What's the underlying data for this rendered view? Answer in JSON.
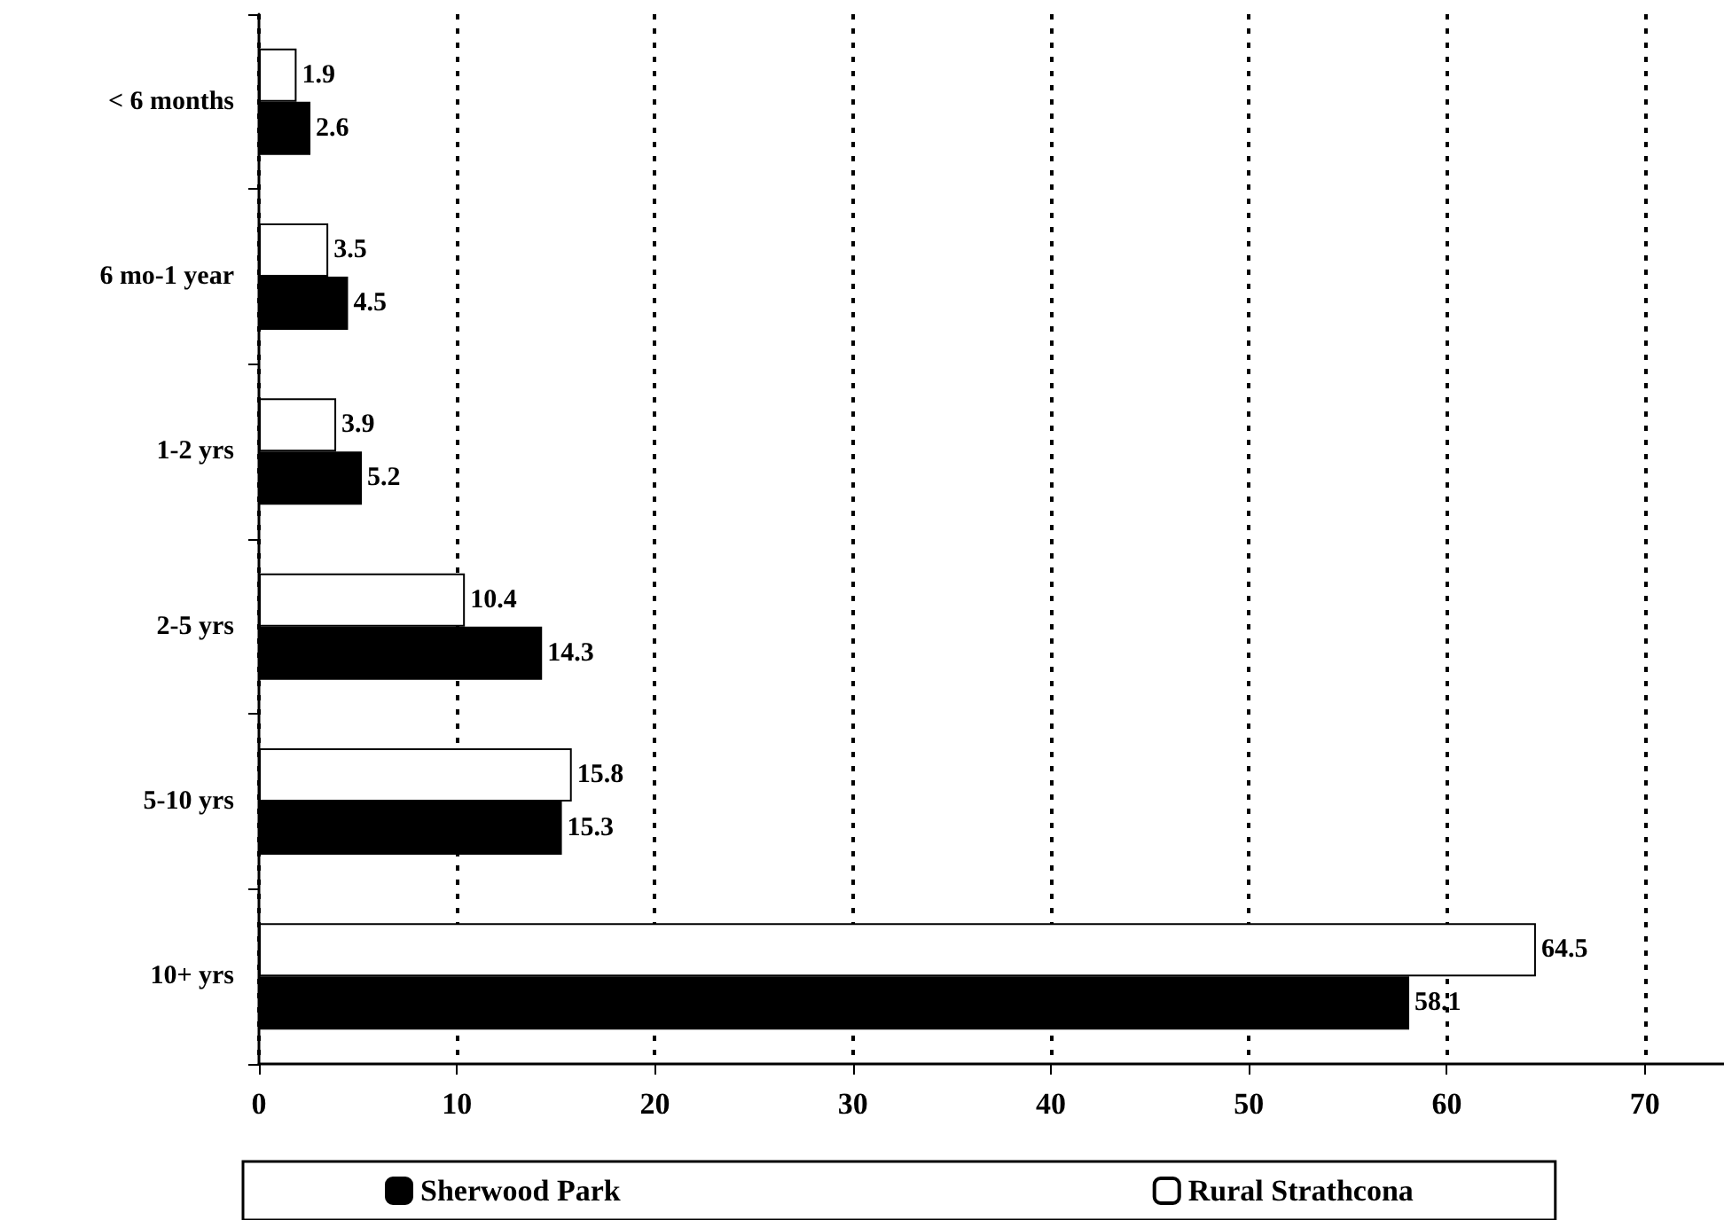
{
  "chart_data": {
    "type": "bar",
    "orientation": "horizontal",
    "categories": [
      "< 6 months",
      "6 mo-1 year",
      "1-2 yrs",
      "2-5 yrs",
      "5-10 yrs",
      "10+ yrs"
    ],
    "series": [
      {
        "name": "Sherwood Park",
        "color": "#000000",
        "values": [
          2.6,
          4.5,
          5.2,
          14.3,
          15.3,
          58.1
        ]
      },
      {
        "name": "Rural Strathcona",
        "color": "#ffffff",
        "values": [
          1.9,
          3.5,
          3.9,
          10.4,
          15.8,
          64.5
        ]
      }
    ],
    "xlim": [
      0,
      74
    ],
    "xticks": [
      0,
      10,
      20,
      30,
      40,
      50,
      60,
      70
    ],
    "grid": "x",
    "data_labels": true,
    "legend": "bottom"
  }
}
